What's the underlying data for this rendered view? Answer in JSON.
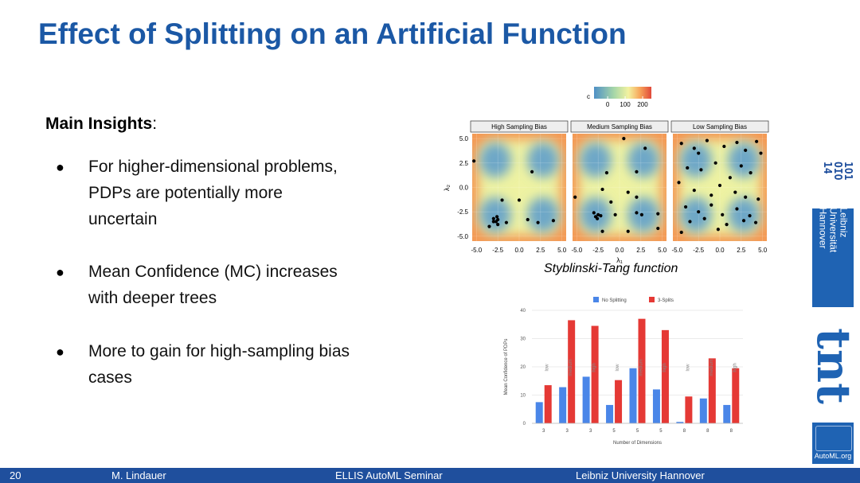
{
  "header": {
    "title": "Effect of Splitting on an Artificial Function"
  },
  "insights": {
    "heading": "Main Insights",
    "colon": ":",
    "bullets": [
      {
        "lines": [
          "For higher-dimensional problems,",
          "PDPs are potentially more",
          "uncertain"
        ]
      },
      {
        "lines": [
          "Mean Confidence (MC) increases",
          "with deeper trees"
        ]
      },
      {
        "lines": [
          "More to gain for high-sampling bias",
          "cases"
        ]
      }
    ]
  },
  "chart_data": [
    {
      "type": "scatter",
      "caption": "Styblinski-Tang function",
      "x_label": "λ₁",
      "y_label": "λ₂",
      "xlim": [
        -5.5,
        5.5
      ],
      "ylim": [
        -5.5,
        5.5
      ],
      "xticks": [
        {
          "value": -5,
          "label": "-5.0"
        },
        {
          "value": -2.5,
          "label": "-2.5"
        },
        {
          "value": 0,
          "label": "0.0"
        },
        {
          "value": 2.5,
          "label": "2.5"
        },
        {
          "value": 5,
          "label": "5.0"
        }
      ],
      "yticks": [
        {
          "value": -5,
          "label": "-5.0"
        },
        {
          "value": -2.5,
          "label": "-2.5"
        },
        {
          "value": 0,
          "label": "0.0"
        },
        {
          "value": 2.5,
          "label": "2.5"
        },
        {
          "value": 5,
          "label": "5.0"
        }
      ],
      "colorbar": {
        "label": "c",
        "lim": [
          -78,
          250
        ],
        "ticks": [
          0,
          100,
          200
        ]
      },
      "point_color": "#000000",
      "panels": [
        {
          "title": "High Sampling Bias",
          "x": [
            -5.3,
            1.5,
            -2,
            0,
            -2.6,
            -3,
            -2.7,
            -2.5,
            -3,
            -1.5,
            1,
            2.2,
            4,
            -3.5,
            -2.5
          ],
          "y": [
            2.7,
            1.6,
            -1.3,
            -1.3,
            -3,
            -3.2,
            -3.5,
            -3.3,
            -3.5,
            -3.6,
            -3.3,
            -3.6,
            -3.4,
            -4,
            -3.8
          ]
        },
        {
          "title": "Medium Sampling Bias",
          "x": [
            0.5,
            3,
            -1.5,
            2,
            -5.2,
            -2,
            -1,
            1,
            2,
            -2.5,
            -2.8,
            -2.2,
            -2.6,
            -3,
            -0.5,
            2,
            2.6,
            4.5,
            -2,
            1,
            4.5
          ],
          "y": [
            5,
            4,
            1.5,
            1.6,
            -1,
            -0.2,
            -1.5,
            -0.5,
            -1,
            -2.8,
            -3,
            -2.9,
            -3.2,
            -2.6,
            -2.8,
            -2.6,
            -2.8,
            -2.7,
            -4.5,
            -4.5,
            -4.2
          ]
        },
        {
          "title": "Low Sampling Bias",
          "x": [
            -4.5,
            -3,
            -2.5,
            -1.5,
            0.5,
            2,
            3,
            4.3,
            4.8,
            -3.8,
            -2.2,
            -0.5,
            1.2,
            2.5,
            3.6,
            -4.8,
            -3,
            -1,
            0,
            1.8,
            3,
            4.5,
            -4,
            -2.5,
            -1,
            0.3,
            2,
            3.5,
            -3.5,
            -1.8,
            0.8,
            2.8,
            4.2,
            -4.5,
            -0.2
          ],
          "y": [
            4.5,
            4,
            3.5,
            4.8,
            4.2,
            4.6,
            3.8,
            4.7,
            3.5,
            2,
            1.8,
            2.5,
            1,
            2.2,
            1.5,
            0.5,
            -0.3,
            -0.8,
            0.2,
            -0.5,
            -1,
            -1.2,
            -2,
            -2.5,
            -1.8,
            -2.8,
            -2.2,
            -2.9,
            -3.5,
            -3.2,
            -3.8,
            -3.4,
            -3.6,
            -4.6,
            -4.3
          ]
        }
      ]
    },
    {
      "type": "bar",
      "x_label": "Number of Dimensions",
      "y_label": "Mean Confidence of PDPs",
      "categories": [
        "3",
        "3",
        "3",
        "5",
        "5",
        "5",
        "8",
        "8",
        "8"
      ],
      "bias_labels": [
        "low",
        "medium",
        "high",
        "low",
        "medium",
        "high",
        "low",
        "medium",
        "high"
      ],
      "series": [
        {
          "name": "No Splitting",
          "color": "#4a86e8",
          "values": [
            7.5,
            12.8,
            16.5,
            6.5,
            19.5,
            12,
            0.5,
            8.8,
            6.5
          ]
        },
        {
          "name": "3-Splits",
          "color": "#e53935",
          "values": [
            13.5,
            36.5,
            34.5,
            15.3,
            37,
            33,
            9.5,
            23,
            19.5
          ]
        }
      ],
      "ylim": [
        0,
        40
      ],
      "yticks": [
        0,
        10,
        20,
        30,
        40
      ],
      "grid": true
    }
  ],
  "logos": {
    "university": [
      "Leibniz",
      "Universität",
      "Hannover"
    ],
    "tnt": "tnt",
    "automl": "AutoML.org"
  },
  "footer": {
    "page": "20",
    "author": "M. Lindauer",
    "event": "ELLIS AutoML Seminar",
    "institution": "Leibniz University Hannover"
  }
}
